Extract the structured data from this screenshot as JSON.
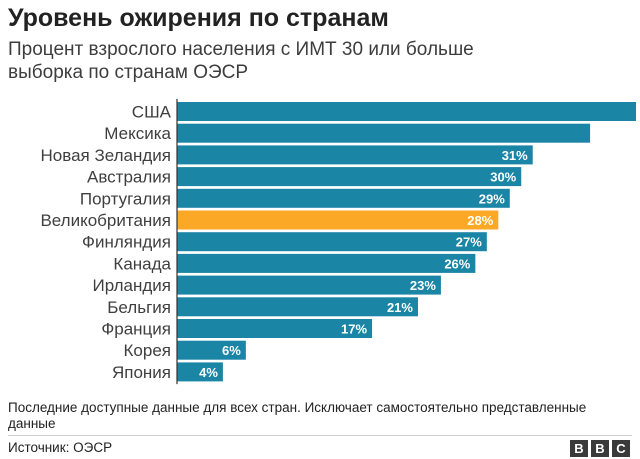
{
  "header": {
    "title": "Уровень ожирения по странам",
    "subtitle_line1": "Процент взрослого населения с ИМТ 30 или больше",
    "subtitle_line2": "выборка по странам ОЭСР"
  },
  "footer": {
    "note": "Последние доступные данные для всех стран. Исключает самостоятельно представленные данные",
    "source": "Источник: ОЭСР",
    "logo_letters": [
      "B",
      "B",
      "C"
    ]
  },
  "colors": {
    "bar": "#1b85a6",
    "highlight": "#fba826",
    "axis": "#333333"
  },
  "chart_data": {
    "type": "bar",
    "orientation": "horizontal",
    "title": "Уровень ожирения по странам",
    "subtitle": "Процент взрослого населения с ИМТ 30 или больше выборка по странам ОЭСР",
    "categories": [
      "США",
      "Мексика",
      "Новая Зеландия",
      "Австралия",
      "Португалия",
      "Великобритания",
      "Финляндия",
      "Канада",
      "Ирландия",
      "Бельгия",
      "Франция",
      "Корея",
      "Япония"
    ],
    "values": [
      40,
      36,
      31,
      30,
      29,
      28,
      27,
      26,
      23,
      21,
      17,
      6,
      4
    ],
    "value_labels": [
      "",
      "",
      "31%",
      "30%",
      "29%",
      "28%",
      "27%",
      "26%",
      "23%",
      "21%",
      "17%",
      "6%",
      "4%"
    ],
    "highlight": "Великобритания",
    "xlim": [
      0,
      40
    ],
    "grid": false,
    "legend": "none"
  }
}
